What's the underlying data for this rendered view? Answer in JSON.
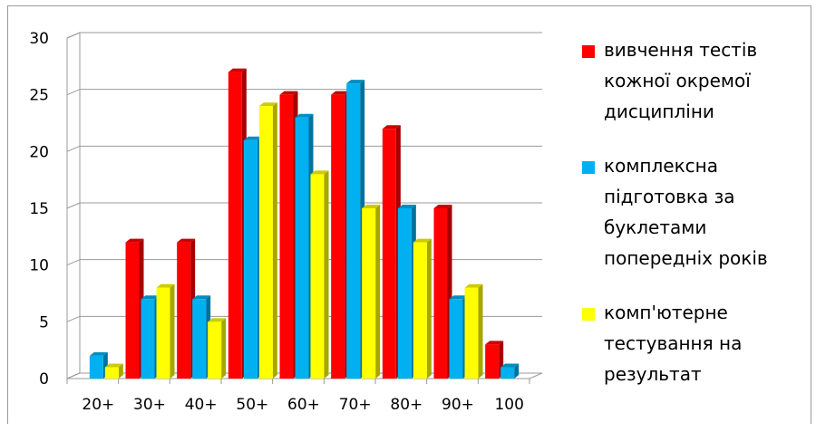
{
  "chart_data": {
    "type": "bar",
    "categories": [
      "20+",
      "30+",
      "40+",
      "50+",
      "60+",
      "70+",
      "80+",
      "90+",
      "100"
    ],
    "series": [
      {
        "name": "вивчення тестів кожної окремої дисципліни",
        "color": "#ff0000",
        "values": [
          0,
          12,
          12,
          27,
          25,
          25,
          22,
          15,
          3
        ]
      },
      {
        "name": "комплексна підготовка за буклетами попередніх років",
        "color": "#00b0f0",
        "values": [
          2,
          7,
          7,
          21,
          23,
          26,
          15,
          7,
          1
        ]
      },
      {
        "name": "комп'ютерне тестування на результат",
        "color": "#ffff00",
        "values": [
          1,
          8,
          5,
          24,
          18,
          15,
          12,
          8,
          0
        ]
      }
    ],
    "y_ticks": [
      "0",
      "5",
      "10",
      "15",
      "20",
      "25",
      "30"
    ],
    "ylim": [
      0,
      30
    ],
    "grid": true,
    "legend": "right",
    "title": "",
    "xlabel": "",
    "ylabel": ""
  },
  "legend_lines": [
    [
      "вивчення тестів",
      "кожної окремої",
      "дисципліни"
    ],
    [
      "комплексна",
      "підготовка за",
      "буклетами",
      "попередніх років"
    ],
    [
      "комп'ютерне",
      "тестування на",
      "результат"
    ]
  ]
}
